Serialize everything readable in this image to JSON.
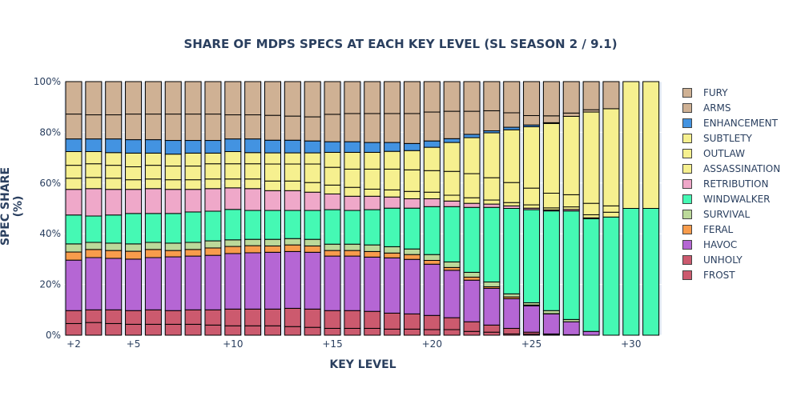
{
  "chart_data": {
    "type": "bar",
    "stacked": true,
    "title": "SHARE OF MDPS SPECS AT EACH KEY LEVEL (SL SEASON 2 / 9.1)",
    "xlabel": "KEY LEVEL",
    "ylabel": "SPEC SHARE (%)",
    "ylim": [
      0,
      100
    ],
    "yticks": [
      "0%",
      "20%",
      "40%",
      "60%",
      "80%",
      "100%"
    ],
    "xticks": [
      "+2",
      "+5",
      "+10",
      "+15",
      "+20",
      "+25",
      "+30"
    ],
    "legend_position": "right",
    "categories": [
      "+2",
      "+3",
      "+4",
      "+5",
      "+6",
      "+7",
      "+8",
      "+9",
      "+10",
      "+11",
      "+12",
      "+13",
      "+14",
      "+15",
      "+16",
      "+17",
      "+18",
      "+19",
      "+20",
      "+21",
      "+22",
      "+23",
      "+24",
      "+25",
      "+26",
      "+27",
      "+28",
      "+29",
      "+30",
      "+31"
    ],
    "series": [
      {
        "name": "FROST",
        "color": "#cc5a6e",
        "values": [
          4.6,
          5,
          4.6,
          4.3,
          4.3,
          4.3,
          4.3,
          4,
          3.7,
          3.7,
          3.7,
          3.4,
          3.1,
          2.7,
          2.7,
          2.7,
          2.4,
          2.4,
          2.2,
          2.2,
          1.5,
          1.2,
          0.5,
          0.4,
          0.3,
          0,
          0,
          0,
          0,
          0
        ]
      },
      {
        "name": "UNHOLY",
        "color": "#cc5a6e",
        "values": [
          5.1,
          5,
          5.4,
          5.4,
          5.7,
          5.4,
          5.7,
          6,
          6.6,
          6.6,
          6.6,
          7.2,
          7.2,
          7,
          7,
          6.7,
          6.3,
          6,
          5.6,
          4.7,
          3.8,
          2.8,
          2.2,
          0.8,
          0.2,
          0.2,
          0,
          0,
          0,
          0
        ]
      },
      {
        "name": "HAVOC",
        "color": "#b566d4",
        "values": [
          19.9,
          20.6,
          20.3,
          20.3,
          20.6,
          21.2,
          21.2,
          21.5,
          21.9,
          22.2,
          22.4,
          22.4,
          22.4,
          21.5,
          21.5,
          21.4,
          21.8,
          21.5,
          20.2,
          18.7,
          16.4,
          14.5,
          11.7,
          10.4,
          7.9,
          5.1,
          1.5,
          0,
          0,
          0
        ]
      },
      {
        "name": "FERAL",
        "color": "#f89c4c",
        "values": [
          3.2,
          3.2,
          3.1,
          3.1,
          3.2,
          2.5,
          2.6,
          2.9,
          2.8,
          2.8,
          2.5,
          2.6,
          2.5,
          2.2,
          2.2,
          2.2,
          1.9,
          1.9,
          1.5,
          1.1,
          1.2,
          0.6,
          0.7,
          0.3,
          0.1,
          0,
          0,
          0,
          0,
          0
        ]
      },
      {
        "name": "SURVIVAL",
        "color": "#bcd99a",
        "values": [
          3.2,
          2.8,
          2.9,
          2.9,
          2.8,
          2.9,
          2.8,
          2.8,
          2.6,
          2.5,
          2.6,
          2.5,
          2.6,
          2.5,
          2.5,
          2.6,
          2.5,
          2.2,
          2.3,
          2.2,
          1.9,
          1.9,
          1.2,
          0.9,
          1.2,
          0.9,
          0,
          0,
          0,
          0
        ]
      },
      {
        "name": "WINDWALKER",
        "color": "#45f9b4",
        "values": [
          11.4,
          10.4,
          11.1,
          12,
          11.4,
          11.7,
          12,
          11.7,
          12,
          11.4,
          11.4,
          11.1,
          11.4,
          13.6,
          13.3,
          13.9,
          15.2,
          16.1,
          18.9,
          21.8,
          25.6,
          29.4,
          33.7,
          36.7,
          39.3,
          42.8,
          44.4,
          46.6,
          50,
          50
        ]
      },
      {
        "name": "RETRIBUTION",
        "color": "#efa8c9",
        "values": [
          10.1,
          10.8,
          10.1,
          9.5,
          9.8,
          9.5,
          8.9,
          8.9,
          8.5,
          8.6,
          7.8,
          7.8,
          7.2,
          6.2,
          5.6,
          5.3,
          4.4,
          3.7,
          3.1,
          2.2,
          1.6,
          1.3,
          1,
          0.6,
          0.4,
          0.6,
          0.4,
          0,
          0,
          0
        ]
      },
      {
        "name": "ASSASSINATION",
        "color": "#f6f08f",
        "values": [
          4.4,
          4.4,
          4.4,
          3.8,
          3.8,
          3.8,
          3.8,
          3.8,
          3.5,
          3.8,
          3.8,
          3.8,
          3.8,
          3.5,
          3.5,
          2.8,
          2.8,
          2.9,
          2.6,
          2.3,
          2.2,
          1.6,
          1.3,
          1.3,
          0.8,
          1,
          1.2,
          1.9,
          0,
          0
        ]
      },
      {
        "name": "OUTLAW",
        "color": "#f6f08f",
        "values": [
          5.1,
          5.4,
          5.1,
          5.1,
          5.4,
          5.4,
          5.4,
          6,
          6,
          6,
          6.7,
          6.7,
          7.3,
          7,
          7.2,
          7.9,
          8.2,
          8.5,
          8.5,
          9.4,
          9.5,
          8.8,
          7.9,
          6.6,
          5.8,
          4.8,
          4.5,
          2.5,
          50,
          50
        ]
      },
      {
        "name": "SUBTLETY",
        "color": "#f6f08f",
        "values": [
          5.4,
          4.8,
          5,
          5.4,
          4.8,
          4.7,
          5.1,
          4.2,
          4.8,
          4.4,
          4.4,
          4.4,
          4.4,
          5.9,
          6.6,
          6.6,
          7,
          7.6,
          9.2,
          11.4,
          14.2,
          17.7,
          20.8,
          24.2,
          27.5,
          30.9,
          36,
          38.3,
          0,
          0
        ]
      },
      {
        "name": "ENHANCEMENT",
        "color": "#4393e1",
        "values": [
          5,
          5,
          5.4,
          5.3,
          5.3,
          5.4,
          5,
          5,
          5,
          5.4,
          5,
          5,
          4.7,
          4.2,
          4.2,
          3.9,
          3.5,
          2.8,
          2.5,
          1.5,
          1.3,
          0.8,
          1,
          0.7,
          0.3,
          0,
          0,
          0,
          0,
          0
        ]
      },
      {
        "name": "ARMS",
        "color": "#cfb194",
        "values": [
          9.8,
          9.5,
          9.5,
          10.1,
          10.1,
          10.4,
          10.4,
          10.4,
          9.5,
          9.5,
          9.8,
          9.5,
          9.5,
          10.8,
          11.1,
          11.4,
          11.4,
          11.8,
          11.4,
          10.8,
          9.1,
          7.9,
          5.7,
          3.7,
          2.7,
          1.3,
          0.9,
          0,
          0,
          0
        ]
      },
      {
        "name": "FURY",
        "color": "#cfb194",
        "values": [
          12.8,
          13.1,
          13.1,
          12.8,
          12.8,
          12.8,
          12.8,
          12.8,
          13.1,
          13.1,
          13.3,
          13.6,
          13.9,
          12.9,
          12.6,
          12.6,
          12.6,
          12.6,
          12,
          11.7,
          11.7,
          11.5,
          12.3,
          13.4,
          13.5,
          12.4,
          11.1,
          10.7,
          0,
          0
        ]
      }
    ]
  }
}
